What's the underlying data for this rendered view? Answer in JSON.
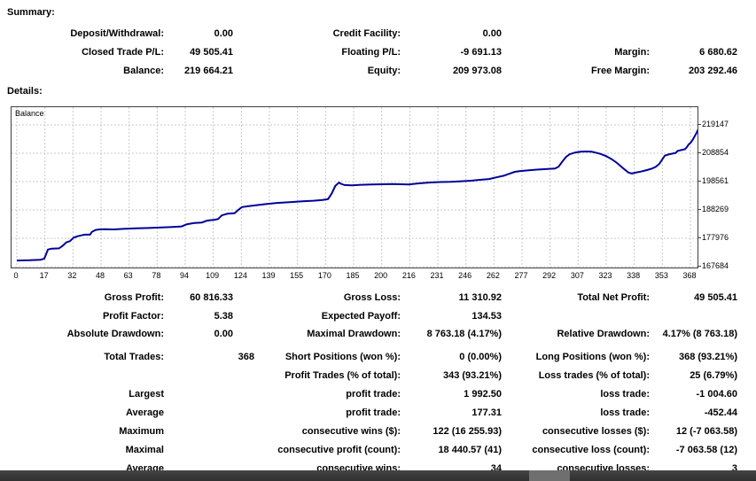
{
  "summary": {
    "heading": "Summary:",
    "rows": [
      [
        {
          "label": "Deposit/Withdrawal:",
          "value": "0.00"
        },
        {
          "label": "Credit Facility:",
          "value": "0.00"
        },
        null
      ],
      [
        {
          "label": "Closed Trade P/L:",
          "value": "49 505.41"
        },
        {
          "label": "Floating P/L:",
          "value": "-9 691.13"
        },
        {
          "label": "Margin:",
          "value": "6 680.62"
        }
      ],
      [
        {
          "label": "Balance:",
          "value": "219 664.21"
        },
        {
          "label": "Equity:",
          "value": "209 973.08"
        },
        {
          "label": "Free Margin:",
          "value": "203 292.46"
        }
      ]
    ]
  },
  "details": {
    "heading": "Details:",
    "stat_rows": [
      [
        {
          "label": "Gross Profit:",
          "value": "60 816.33"
        },
        {
          "label": "Gross Loss:",
          "value": "11 310.92"
        },
        {
          "label": "Total Net Profit:",
          "value": "49 505.41"
        }
      ],
      [
        {
          "label": "Profit Factor:",
          "value": "5.38"
        },
        {
          "label": "Expected Payoff:",
          "value": "134.53"
        },
        null
      ],
      [
        {
          "label": "Absolute Drawdown:",
          "value": "0.00"
        },
        {
          "label": "Maximal Drawdown:",
          "value": "8 763.18 (4.17%)"
        },
        {
          "label": "Relative Drawdown:",
          "value": "4.17% (8 763.18)"
        }
      ]
    ],
    "trade_rows": [
      [
        {
          "label": "Total Trades:",
          "value": "368"
        },
        {
          "label": "Short Positions (won %):",
          "value": "0 (0.00%)"
        },
        {
          "label": "Long Positions (won %):",
          "value": "368 (93.21%)"
        }
      ],
      [
        null,
        {
          "label": "Profit Trades (% of total):",
          "value": "343 (93.21%)"
        },
        {
          "label": "Loss trades (% of total):",
          "value": "25 (6.79%)"
        }
      ],
      [
        {
          "label": "Largest"
        },
        {
          "label": "profit trade:",
          "value": "1 992.50"
        },
        {
          "label": "loss trade:",
          "value": "-1 004.60"
        }
      ],
      [
        {
          "label": "Average"
        },
        {
          "label": "profit trade:",
          "value": "177.31"
        },
        {
          "label": "loss trade:",
          "value": "-452.44"
        }
      ],
      [
        {
          "label": "Maximum"
        },
        {
          "label": "consecutive wins ($):",
          "value": "122 (16 255.93)"
        },
        {
          "label": "consecutive losses ($):",
          "value": "12 (-7 063.58)"
        }
      ],
      [
        {
          "label": "Maximal"
        },
        {
          "label": "consecutive profit (count):",
          "value": "18 440.57 (41)"
        },
        {
          "label": "consecutive loss (count):",
          "value": "-7 063.58 (12)"
        }
      ],
      [
        {
          "label": "Average"
        },
        {
          "label": "consecutive wins:",
          "value": "34"
        },
        {
          "label": "consecutive losses:",
          "value": "3"
        }
      ]
    ]
  },
  "chart_data": {
    "type": "line",
    "title": "Balance",
    "legend": "Balance",
    "line_color": "#000099",
    "grid": true,
    "grid_color": "#c8c8c8",
    "x_tick_labels": [
      "0",
      "17",
      "32",
      "48",
      "63",
      "78",
      "94",
      "109",
      "124",
      "139",
      "155",
      "170",
      "185",
      "200",
      "216",
      "231",
      "246",
      "262",
      "277",
      "292",
      "307",
      "323",
      "338",
      "353",
      "368"
    ],
    "y_tick_labels": [
      "219147",
      "208854",
      "198561",
      "188269",
      "177976",
      "167684"
    ],
    "ylim": [
      167684,
      219147
    ],
    "xlim": [
      0,
      373
    ],
    "series": [
      {
        "name": "Balance",
        "points": [
          [
            0,
            169900
          ],
          [
            7,
            170000
          ],
          [
            13,
            170200
          ],
          [
            15,
            170600
          ],
          [
            16,
            172200
          ],
          [
            17,
            173900
          ],
          [
            19,
            174200
          ],
          [
            23,
            174300
          ],
          [
            25,
            175200
          ],
          [
            27,
            176500
          ],
          [
            29,
            176900
          ],
          [
            31,
            178200
          ],
          [
            33,
            178700
          ],
          [
            35,
            179000
          ],
          [
            37,
            179300
          ],
          [
            40,
            179300
          ],
          [
            41,
            180300
          ],
          [
            43,
            181000
          ],
          [
            45,
            181200
          ],
          [
            48,
            181300
          ],
          [
            53,
            181200
          ],
          [
            58,
            181400
          ],
          [
            65,
            181600
          ],
          [
            72,
            181700
          ],
          [
            79,
            181900
          ],
          [
            85,
            182100
          ],
          [
            90,
            182300
          ],
          [
            93,
            183100
          ],
          [
            97,
            183500
          ],
          [
            101,
            183700
          ],
          [
            104,
            184400
          ],
          [
            108,
            184700
          ],
          [
            110,
            185000
          ],
          [
            112,
            186300
          ],
          [
            115,
            186900
          ],
          [
            119,
            187100
          ],
          [
            121,
            188300
          ],
          [
            123,
            189300
          ],
          [
            126,
            189600
          ],
          [
            130,
            189900
          ],
          [
            136,
            190400
          ],
          [
            142,
            190800
          ],
          [
            149,
            191100
          ],
          [
            156,
            191400
          ],
          [
            162,
            191600
          ],
          [
            167,
            191900
          ],
          [
            170,
            192200
          ],
          [
            172,
            194200
          ],
          [
            174,
            197000
          ],
          [
            176,
            198200
          ],
          [
            177,
            197800
          ],
          [
            179,
            197300
          ],
          [
            183,
            197200
          ],
          [
            188,
            197400
          ],
          [
            194,
            197500
          ],
          [
            200,
            197600
          ],
          [
            205,
            197700
          ],
          [
            210,
            197600
          ],
          [
            214,
            197500
          ],
          [
            219,
            197900
          ],
          [
            225,
            198200
          ],
          [
            231,
            198400
          ],
          [
            237,
            198500
          ],
          [
            243,
            198700
          ],
          [
            248,
            198900
          ],
          [
            253,
            199200
          ],
          [
            258,
            199500
          ],
          [
            262,
            200100
          ],
          [
            266,
            200700
          ],
          [
            269,
            201400
          ],
          [
            272,
            202100
          ],
          [
            275,
            202400
          ],
          [
            279,
            202600
          ],
          [
            284,
            202900
          ],
          [
            289,
            203100
          ],
          [
            294,
            203300
          ],
          [
            296,
            204000
          ],
          [
            298,
            205800
          ],
          [
            300,
            207500
          ],
          [
            302,
            208500
          ],
          [
            305,
            209100
          ],
          [
            308,
            209400
          ],
          [
            311,
            209500
          ],
          [
            314,
            209400
          ],
          [
            316,
            209100
          ],
          [
            319,
            208600
          ],
          [
            322,
            207800
          ],
          [
            325,
            206700
          ],
          [
            328,
            205300
          ],
          [
            330,
            204100
          ],
          [
            332,
            203000
          ],
          [
            334,
            201900
          ],
          [
            336,
            201500
          ],
          [
            338,
            201800
          ],
          [
            341,
            202200
          ],
          [
            344,
            202700
          ],
          [
            347,
            203300
          ],
          [
            349,
            203900
          ],
          [
            351,
            205000
          ],
          [
            353,
            207000
          ],
          [
            354,
            208000
          ],
          [
            356,
            208400
          ],
          [
            358,
            208700
          ],
          [
            360,
            209000
          ],
          [
            361,
            209700
          ],
          [
            363,
            210000
          ],
          [
            365,
            210300
          ],
          [
            366,
            211000
          ],
          [
            367,
            212000
          ],
          [
            368,
            212600
          ],
          [
            369,
            213500
          ],
          [
            370,
            214600
          ],
          [
            371,
            215800
          ],
          [
            372,
            217200
          ],
          [
            373,
            218700
          ]
        ]
      }
    ]
  }
}
